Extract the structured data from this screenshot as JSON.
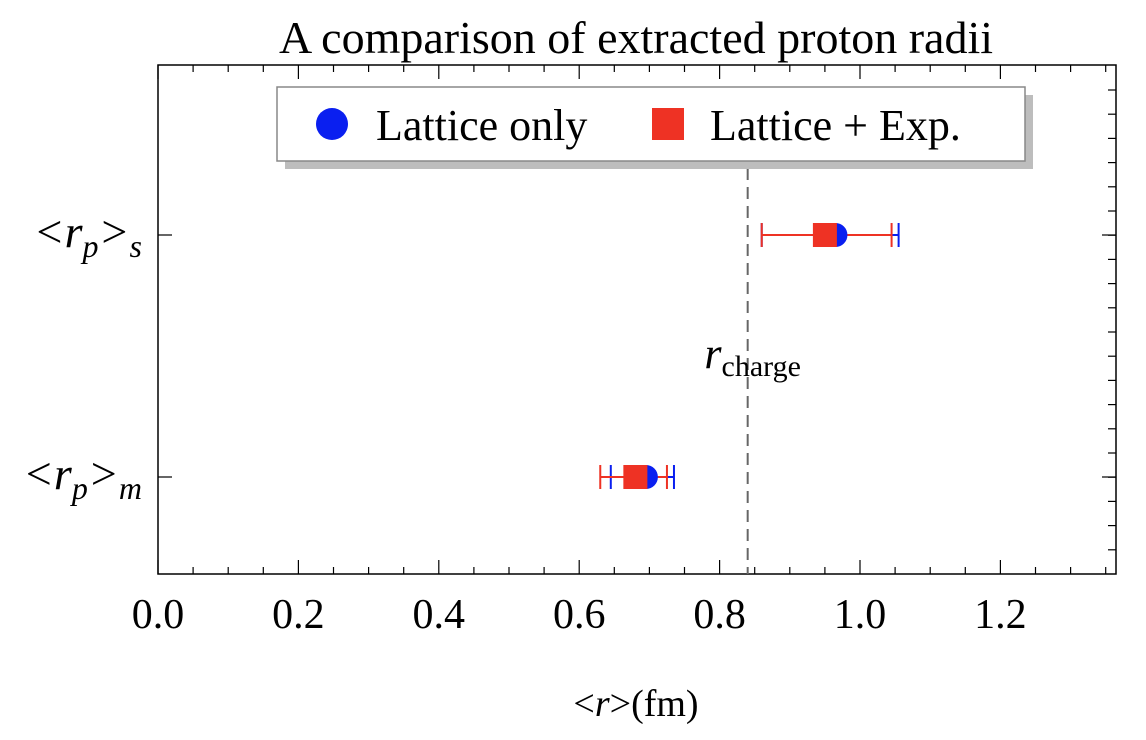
{
  "chart_data": {
    "type": "scatter",
    "title": "A comparison of extracted proton radii",
    "xlabel_parts": [
      "<",
      "r",
      ">",
      "(fm)"
    ],
    "xlim": [
      0.0,
      1.35
    ],
    "x_ticks": [
      {
        "value": 0.0,
        "label": "0.0"
      },
      {
        "value": 0.2,
        "label": "0.2"
      },
      {
        "value": 0.4,
        "label": "0.4"
      },
      {
        "value": 0.6,
        "label": "0.6"
      },
      {
        "value": 0.8,
        "label": "0.8"
      },
      {
        "value": 1.0,
        "label": "1.0"
      },
      {
        "value": 1.2,
        "label": "1.2"
      }
    ],
    "categories": [
      {
        "id": "s",
        "label_main": "<r",
        "label_sub": "p",
        "label_tail": ">",
        "label_tail_sub": "s"
      },
      {
        "id": "m",
        "label_main": "<r",
        "label_sub": "p",
        "label_tail": ">",
        "label_tail_sub": "m"
      }
    ],
    "series": [
      {
        "name": "Lattice only",
        "marker": "circle",
        "color": "#0a1ff0",
        "points": [
          {
            "category": "s",
            "x": 0.965,
            "xerr_low": 0.105,
            "xerr_high": 0.09
          },
          {
            "category": "m",
            "x": 0.695,
            "xerr_low": 0.05,
            "xerr_high": 0.04
          }
        ]
      },
      {
        "name": "Lattice + Exp.",
        "marker": "square",
        "color": "#ee3224",
        "points": [
          {
            "category": "s",
            "x": 0.95,
            "xerr_low": 0.09,
            "xerr_high": 0.095
          },
          {
            "category": "m",
            "x": 0.68,
            "xerr_low": 0.05,
            "xerr_high": 0.045
          }
        ]
      }
    ],
    "reference_line": {
      "x": 0.84,
      "style": "dashed",
      "label_main": "r",
      "label_sub": "charge"
    },
    "legend": {
      "placement": "top-center"
    }
  }
}
